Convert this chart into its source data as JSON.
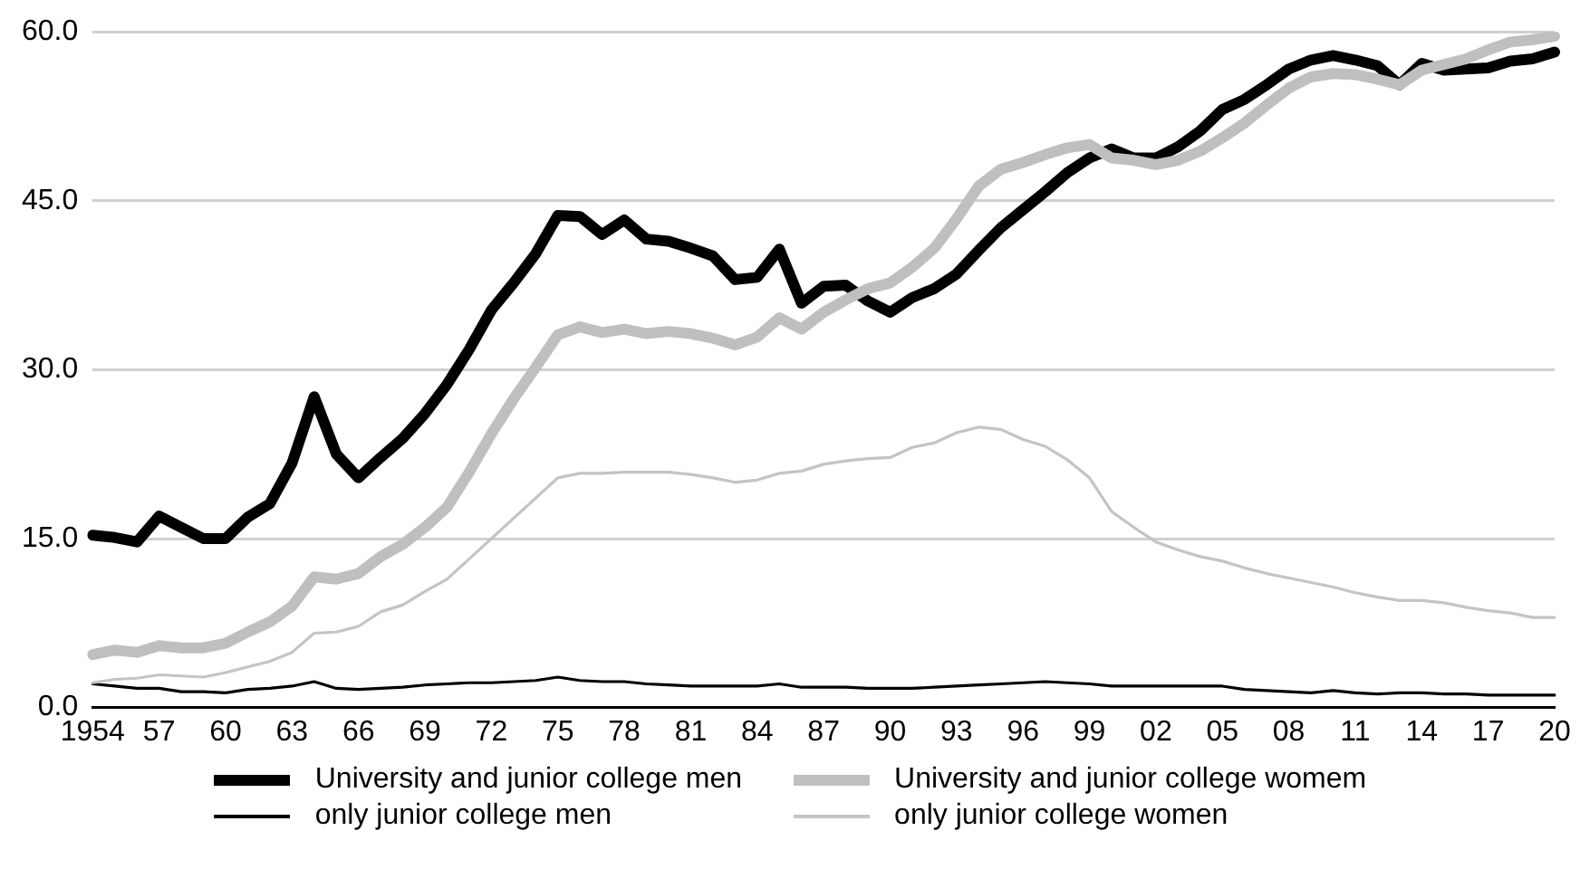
{
  "chart_data": {
    "type": "line",
    "categories": [
      "1954",
      null,
      null,
      "57",
      null,
      null,
      "60",
      null,
      null,
      "63",
      null,
      null,
      "66",
      null,
      null,
      "69",
      null,
      null,
      "72",
      null,
      null,
      "75",
      null,
      null,
      "78",
      null,
      null,
      "81",
      null,
      null,
      "84",
      null,
      null,
      "87",
      null,
      null,
      "90",
      null,
      null,
      "93",
      null,
      null,
      "96",
      null,
      null,
      "99",
      null,
      null,
      "02",
      null,
      null,
      "05",
      null,
      null,
      "08",
      null,
      null,
      "11",
      null,
      null,
      "14",
      null,
      null,
      "17",
      null,
      null,
      "20"
    ],
    "series": [
      {
        "name": "University and junior college men",
        "color": "#000000",
        "values": [
          15.3,
          15.1,
          14.7,
          17.0,
          16.0,
          15.0,
          15.0,
          16.9,
          18.1,
          21.7,
          27.6,
          22.5,
          20.4,
          22.2,
          23.9,
          26.1,
          28.7,
          31.8,
          35.3,
          37.7,
          40.3,
          43.7,
          43.6,
          42.0,
          43.3,
          41.6,
          41.4,
          40.8,
          40.1,
          38.0,
          38.2,
          40.7,
          35.9,
          37.4,
          37.5,
          36.1,
          35.1,
          36.4,
          37.2,
          38.5,
          40.6,
          42.6,
          44.2,
          45.8,
          47.5,
          48.8,
          49.6,
          48.8,
          48.8,
          49.8,
          51.2,
          53.1,
          54.0,
          55.3,
          56.7,
          57.5,
          57.9,
          57.5,
          57.0,
          55.3,
          57.2,
          56.6,
          56.7,
          56.8,
          57.4,
          57.6,
          58.2
        ]
      },
      {
        "name": "University and junior college womem",
        "color": "#bfbfbf",
        "values": [
          4.7,
          5.1,
          4.9,
          5.5,
          5.3,
          5.3,
          5.7,
          6.7,
          7.6,
          9.0,
          11.6,
          11.4,
          11.9,
          13.4,
          14.5,
          16.0,
          17.8,
          20.9,
          24.3,
          27.4,
          30.2,
          33.1,
          33.8,
          33.3,
          33.6,
          33.2,
          33.4,
          33.2,
          32.8,
          32.2,
          32.9,
          34.6,
          33.6,
          35.1,
          36.2,
          37.2,
          37.7,
          39.1,
          40.8,
          43.4,
          46.3,
          47.8,
          48.4,
          49.1,
          49.7,
          50.0,
          48.8,
          48.6,
          48.2,
          48.6,
          49.4,
          50.6,
          51.9,
          53.5,
          55.0,
          56.0,
          56.3,
          56.2,
          55.8,
          55.3,
          56.6,
          57.1,
          57.6,
          58.4,
          59.1,
          59.3,
          59.6
        ]
      },
      {
        "name": "only junior college men",
        "color": "#000000",
        "values": [
          2.1,
          1.9,
          1.7,
          1.7,
          1.4,
          1.4,
          1.3,
          1.6,
          1.7,
          1.9,
          2.3,
          1.7,
          1.6,
          1.7,
          1.8,
          2.0,
          2.1,
          2.2,
          2.2,
          2.3,
          2.4,
          2.7,
          2.4,
          2.3,
          2.3,
          2.1,
          2.0,
          1.9,
          1.9,
          1.9,
          1.9,
          2.1,
          1.8,
          1.8,
          1.8,
          1.7,
          1.7,
          1.7,
          1.8,
          1.9,
          2.0,
          2.1,
          2.2,
          2.3,
          2.2,
          2.1,
          1.9,
          1.9,
          1.9,
          1.9,
          1.9,
          1.9,
          1.6,
          1.5,
          1.4,
          1.3,
          1.5,
          1.3,
          1.2,
          1.3,
          1.3,
          1.2,
          1.2,
          1.1,
          1.1,
          1.1,
          1.1
        ]
      },
      {
        "name": "only junior college women",
        "color": "#c4c4c4",
        "values": [
          2.2,
          2.5,
          2.6,
          2.9,
          2.8,
          2.7,
          3.1,
          3.6,
          4.1,
          4.9,
          6.6,
          6.7,
          7.2,
          8.5,
          9.1,
          10.3,
          11.4,
          13.2,
          15.0,
          16.8,
          18.6,
          20.4,
          20.8,
          20.8,
          20.9,
          20.9,
          20.9,
          20.7,
          20.4,
          20.0,
          20.2,
          20.8,
          21.0,
          21.6,
          21.9,
          22.1,
          22.2,
          23.1,
          23.5,
          24.4,
          24.9,
          24.7,
          23.8,
          23.2,
          22.0,
          20.4,
          17.4,
          16.0,
          14.7,
          14.0,
          13.4,
          13.0,
          12.4,
          11.9,
          11.5,
          11.1,
          10.7,
          10.2,
          9.8,
          9.5,
          9.5,
          9.3,
          8.9,
          8.6,
          8.4,
          8.0,
          8.0
        ]
      }
    ],
    "ylim": [
      0,
      60
    ],
    "yticks": [
      {
        "value": 0,
        "label": "0.0"
      },
      {
        "value": 15,
        "label": "15.0"
      },
      {
        "value": 30,
        "label": "30.0"
      },
      {
        "value": 45,
        "label": "45.0"
      },
      {
        "value": 60,
        "label": "60.0"
      }
    ],
    "grid": "y",
    "legend": "bottom",
    "marker": "none",
    "line_style": "solid"
  }
}
